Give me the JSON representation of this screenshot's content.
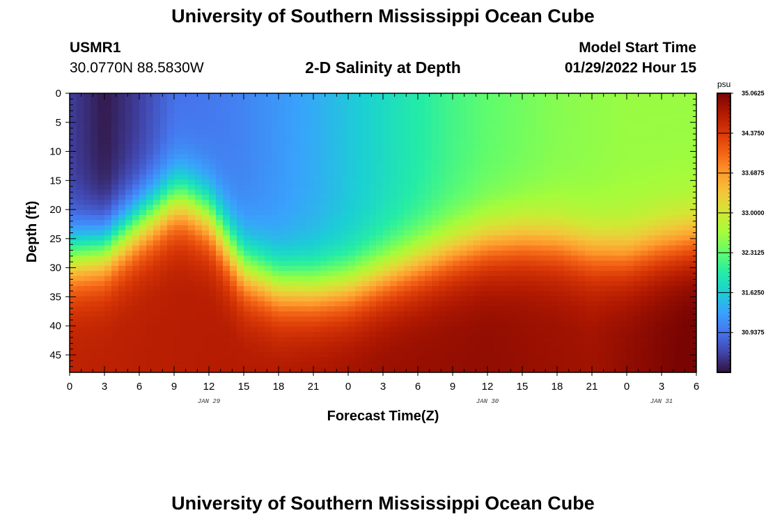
{
  "page": {
    "title": "University of Southern Mississippi Ocean Cube",
    "station_id": "USMR1",
    "station_coords": "30.0770N  88.5830W",
    "model_start_label": "Model Start Time",
    "model_start_value": "01/29/2022 Hour 15",
    "footer_title": "University of Southern Mississippi Ocean Cube"
  },
  "chart_data": {
    "type": "heatmap",
    "title": "2-D Salinity at Depth",
    "xlabel": "Forecast Time(Z)",
    "ylabel": "Depth (ft)",
    "x_ticks": [
      "0",
      "3",
      "6",
      "9",
      "12",
      "15",
      "18",
      "21",
      "0",
      "3",
      "6",
      "9",
      "12",
      "15",
      "18",
      "21",
      "0",
      "3",
      "6"
    ],
    "x_range_hours": [
      0,
      54
    ],
    "date_labels": [
      {
        "label": "JAN 29",
        "hour": 12
      },
      {
        "label": "JAN 30",
        "hour": 36
      },
      {
        "label": "JAN 31",
        "hour": 51
      }
    ],
    "y_ticks": [
      0,
      5,
      10,
      15,
      20,
      25,
      30,
      35,
      40,
      45
    ],
    "y_range_ft": [
      0,
      48
    ],
    "colorbar": {
      "unit": "psu",
      "min": 30.25,
      "max": 35.0625,
      "labels": [
        "35.0625",
        "34.3750",
        "33.6875",
        "33.0000",
        "32.3125",
        "31.6250",
        "30.9375"
      ],
      "colors": [
        "#30123b",
        "#4145ab",
        "#4675ed",
        "#39a2fc",
        "#1bcfd4",
        "#24eca6",
        "#61fc6c",
        "#a4fc3b",
        "#d1e834",
        "#f3c63a",
        "#fe9b2d",
        "#f36315",
        "#d93806",
        "#b11901",
        "#7a0402"
      ]
    },
    "halocline_depth_ft": [
      {
        "hour": 0,
        "depth": 28
      },
      {
        "hour": 3,
        "depth": 27
      },
      {
        "hour": 6,
        "depth": 22.5
      },
      {
        "hour": 9,
        "depth": 18.5
      },
      {
        "hour": 10,
        "depth": 18.5
      },
      {
        "hour": 12,
        "depth": 21
      },
      {
        "hour": 15,
        "depth": 30
      },
      {
        "hour": 18,
        "depth": 33
      },
      {
        "hour": 21,
        "depth": 33.5
      },
      {
        "hour": 24,
        "depth": 33
      },
      {
        "hour": 27,
        "depth": 31
      },
      {
        "hour": 30,
        "depth": 29
      },
      {
        "hour": 33,
        "depth": 27
      },
      {
        "hour": 36,
        "depth": 25.5
      },
      {
        "hour": 39,
        "depth": 25
      },
      {
        "hour": 42,
        "depth": 25.5
      },
      {
        "hour": 45,
        "depth": 27
      },
      {
        "hour": 48,
        "depth": 27.5
      },
      {
        "hour": 51,
        "depth": 26
      },
      {
        "hour": 54,
        "depth": 25
      }
    ],
    "surface_salinity_psu": [
      {
        "hour": 0,
        "value": 30.55
      },
      {
        "hour": 3,
        "value": 30.3
      },
      {
        "hour": 6,
        "value": 30.55
      },
      {
        "hour": 9,
        "value": 30.9
      },
      {
        "hour": 12,
        "value": 30.95
      },
      {
        "hour": 15,
        "value": 31.05
      },
      {
        "hour": 18,
        "value": 31.2
      },
      {
        "hour": 21,
        "value": 31.35
      },
      {
        "hour": 24,
        "value": 31.55
      },
      {
        "hour": 27,
        "value": 31.75
      },
      {
        "hour": 30,
        "value": 31.95
      },
      {
        "hour": 33,
        "value": 32.15
      },
      {
        "hour": 36,
        "value": 32.3
      },
      {
        "hour": 39,
        "value": 32.4
      },
      {
        "hour": 42,
        "value": 32.5
      },
      {
        "hour": 45,
        "value": 32.55
      },
      {
        "hour": 48,
        "value": 32.6
      },
      {
        "hour": 51,
        "value": 32.6
      },
      {
        "hour": 54,
        "value": 32.6
      }
    ],
    "bottom_salinity_psu": [
      {
        "hour": 0,
        "value": 34.5
      },
      {
        "hour": 9,
        "value": 34.55
      },
      {
        "hour": 18,
        "value": 34.6
      },
      {
        "hour": 27,
        "value": 34.75
      },
      {
        "hour": 36,
        "value": 34.8
      },
      {
        "hour": 45,
        "value": 34.7
      },
      {
        "hour": 54,
        "value": 35.0
      }
    ]
  }
}
